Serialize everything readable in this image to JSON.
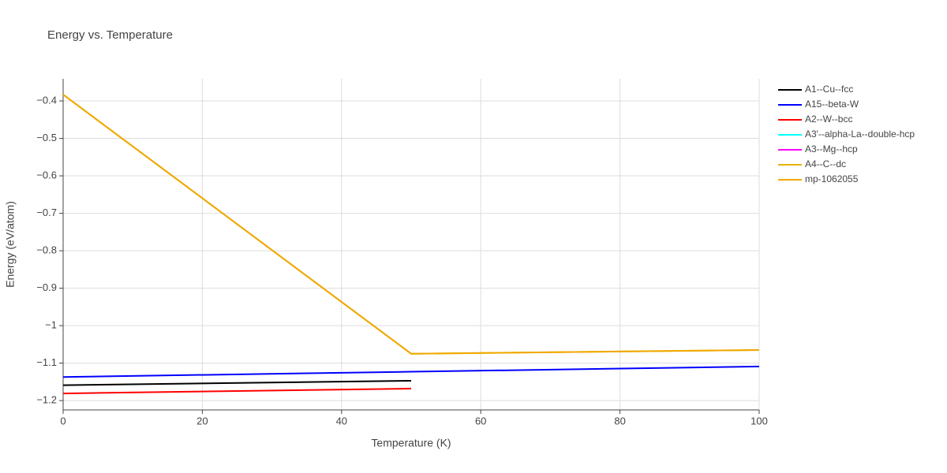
{
  "chart_data": {
    "type": "line",
    "title": "Energy vs. Temperature",
    "x_label": "Temperature (K)",
    "y_label": "Energy (eV/atom)",
    "x": [
      0,
      50,
      100
    ],
    "series": [
      {
        "name": "A1--Cu--fcc",
        "color": "#000000",
        "values": [
          -1.159,
          -1.147,
          null
        ]
      },
      {
        "name": "A15--beta-W",
        "color": "#0000ff",
        "values": [
          -1.137,
          -1.123,
          -1.109
        ]
      },
      {
        "name": "A2--W--bcc",
        "color": "#ff0000",
        "values": [
          -1.181,
          -1.168,
          null
        ]
      },
      {
        "name": "A3'--alpha-La--double-hcp",
        "color": "#00ffff",
        "values": [
          null,
          null,
          null
        ]
      },
      {
        "name": "A3--Mg--hcp",
        "color": "#ff00ff",
        "values": [
          null,
          null,
          null
        ]
      },
      {
        "name": "A4--C--dc",
        "color": "#e6b400",
        "values": [
          -0.383,
          -1.075,
          -1.065
        ]
      },
      {
        "name": "mp-1062055",
        "color": "#f0a800",
        "values": [
          -0.383,
          -1.075,
          -1.065
        ]
      }
    ],
    "xlim": [
      0,
      100
    ],
    "xticks": [
      0,
      20,
      40,
      60,
      80,
      100
    ],
    "ylim": [
      -1.225,
      -0.341
    ],
    "yticks": [
      {
        "value": -0.4,
        "label": "−0.4"
      },
      {
        "value": -0.5,
        "label": "−0.5"
      },
      {
        "value": -0.6,
        "label": "−0.6"
      },
      {
        "value": -0.7,
        "label": "−0.7"
      },
      {
        "value": -0.8,
        "label": "−0.8"
      },
      {
        "value": -0.9,
        "label": "−0.9"
      },
      {
        "value": -1,
        "label": "−1"
      },
      {
        "value": -1.1,
        "label": "−1.1"
      },
      {
        "value": -1.2,
        "label": "−1.2"
      }
    ],
    "grid": true,
    "legend": "top-right"
  }
}
